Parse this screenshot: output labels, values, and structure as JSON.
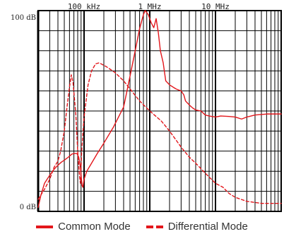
{
  "chart_data": {
    "type": "line",
    "x_scale": "log",
    "xlim": [
      20000,
      100000000
    ],
    "ylim": [
      0,
      100
    ],
    "x_ticks": [
      {
        "label": "100 kHz",
        "value": 100000
      },
      {
        "label": "1 MHz",
        "value": 1000000
      },
      {
        "label": "10 MHz",
        "value": 10000000
      }
    ],
    "y_ticks": [
      {
        "label": "100 dB",
        "value": 100
      },
      {
        "label": "0 dB",
        "value": 0
      }
    ],
    "grid": true,
    "legend_position": "bottom",
    "series": [
      {
        "name": "Common Mode",
        "style": "solid",
        "color": "#e3161b",
        "points": [
          [
            20000,
            2
          ],
          [
            22000,
            8
          ],
          [
            25000,
            14
          ],
          [
            30000,
            18
          ],
          [
            35000,
            21
          ],
          [
            40000,
            23
          ],
          [
            45000,
            24.5
          ],
          [
            50000,
            25.5
          ],
          [
            55000,
            26.5
          ],
          [
            60000,
            27.5
          ],
          [
            65000,
            28.5
          ],
          [
            70000,
            28.8
          ],
          [
            78000,
            28.8
          ],
          [
            83000,
            27
          ],
          [
            88000,
            22
          ],
          [
            93000,
            13
          ],
          [
            96000,
            12
          ],
          [
            100000,
            16
          ],
          [
            110000,
            20
          ],
          [
            130000,
            24
          ],
          [
            160000,
            29
          ],
          [
            200000,
            34
          ],
          [
            280000,
            42
          ],
          [
            400000,
            52
          ],
          [
            450000,
            60
          ],
          [
            520000,
            70
          ],
          [
            600000,
            80
          ],
          [
            700000,
            91
          ],
          [
            800000,
            98
          ],
          [
            850000,
            100
          ],
          [
            950000,
            98
          ],
          [
            1050000,
            94
          ],
          [
            1150000,
            91.5
          ],
          [
            1250000,
            96
          ],
          [
            1350000,
            89
          ],
          [
            1450000,
            80
          ],
          [
            1600000,
            74
          ],
          [
            1750000,
            65
          ],
          [
            2000000,
            63
          ],
          [
            2500000,
            61
          ],
          [
            3000000,
            60
          ],
          [
            3300000,
            58
          ],
          [
            3500000,
            55
          ],
          [
            4000000,
            53
          ],
          [
            4500000,
            51.5
          ],
          [
            5000000,
            50.5
          ],
          [
            6000000,
            50
          ],
          [
            7000000,
            48
          ],
          [
            8000000,
            47.5
          ],
          [
            10000000,
            47
          ],
          [
            12000000,
            47.5
          ],
          [
            16000000,
            47.3
          ],
          [
            20000000,
            47
          ],
          [
            25000000,
            46
          ],
          [
            30000000,
            47
          ],
          [
            40000000,
            48
          ],
          [
            60000000,
            48.5
          ],
          [
            100000000,
            48.5
          ]
        ]
      },
      {
        "name": "Differential Mode",
        "style": "dashed",
        "color": "#e3161b",
        "points": [
          [
            20000,
            6
          ],
          [
            25000,
            11
          ],
          [
            30000,
            16
          ],
          [
            35000,
            22
          ],
          [
            40000,
            25
          ],
          [
            44000,
            30
          ],
          [
            50000,
            40
          ],
          [
            55000,
            52
          ],
          [
            60000,
            62
          ],
          [
            64000,
            68
          ],
          [
            68000,
            64
          ],
          [
            75000,
            48
          ],
          [
            80000,
            30
          ],
          [
            85000,
            18
          ],
          [
            88000,
            14
          ],
          [
            92000,
            30
          ],
          [
            100000,
            47
          ],
          [
            115000,
            63
          ],
          [
            130000,
            70
          ],
          [
            150000,
            73.5
          ],
          [
            170000,
            74
          ],
          [
            220000,
            72
          ],
          [
            300000,
            69
          ],
          [
            400000,
            65
          ],
          [
            500000,
            61
          ],
          [
            700000,
            55
          ],
          [
            1000000,
            50
          ],
          [
            1500000,
            45
          ],
          [
            2000000,
            40
          ],
          [
            3000000,
            32
          ],
          [
            4000000,
            27
          ],
          [
            5000000,
            24
          ],
          [
            7000000,
            19
          ],
          [
            10000000,
            14
          ],
          [
            13000000,
            12
          ],
          [
            16000000,
            9
          ],
          [
            20000000,
            7
          ],
          [
            30000000,
            5
          ],
          [
            50000000,
            4
          ],
          [
            100000000,
            4
          ]
        ]
      }
    ]
  }
}
